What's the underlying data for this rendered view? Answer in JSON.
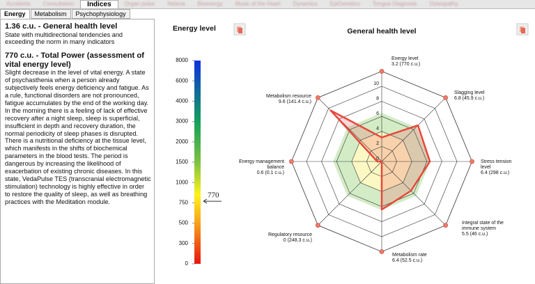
{
  "ui": {
    "tabs": [
      "Accidents",
      "Consultation",
      "Organ pulse",
      "Nidana",
      "Bioenergy",
      "Music of the Heart",
      "Dynamics",
      "EpiGenetics",
      "Tongue Diagnosis",
      "Osteopathy"
    ],
    "active_tab": "Indices",
    "subtabs": [
      "Energy",
      "Metabolism",
      "Psychophysiology"
    ]
  },
  "text": {
    "heading1": "1.36 c.u. - General health level",
    "desc1": "State with multidirectional tendencies and exceeding the norm in many indicators",
    "heading2": "770 c.u. - Total Power (assessment of vital energy level)",
    "desc2": "Slight decrease in the level of vital energy. A state of psychasthenia when a person already subjectively feels energy deficiency and fatigue. As a rule, functional disorders are not pronounced, fatigue accumulates by the end of the working day. In the morning there is a feeling of lack of effective recovery after a night sleep, sleep is superficial, insufficient in depth and recovery duration, the normal periodicity of sleep phases is disrupted. There is a nutritional deficiency at the tissue level, which manifests in the shifts of biochemical parameters in the blood tests. The period is dangerous by increasing the likelihood of exacerbation of existing chronic diseases. In this state, VedaPulse TES (transcranial electromagnetic stimulation) technology is highly effective in order to restore the quality of sleep, as well as breathing practices with the Meditation module."
  },
  "chart_data": [
    {
      "type": "gauge",
      "title": "Energy level",
      "value": 770,
      "value_label": "770",
      "ylim": [
        0,
        8000
      ],
      "yticks": [
        0,
        300,
        500,
        750,
        1000,
        1500,
        2000,
        3000,
        4000,
        6000,
        8000
      ]
    },
    {
      "type": "radar",
      "title": "General health level",
      "categories": [
        "Energy level",
        "Slagging level",
        "Stress tension level",
        "Integral state of the immune system",
        "Metabolism rate",
        "Regulatory resource",
        "Energy management balance",
        "Metabolism resource"
      ],
      "values": [
        3.2,
        6.8,
        6.4,
        5.5,
        6.4,
        0,
        0.6,
        9.6
      ],
      "value_labels": [
        "3.2 (770 c.u.)",
        "6.8 (45.9 c.u.)",
        "6.4 (298 c.u.)",
        "5.5 (46 c.u.)",
        "6.4 (52.5 c.u.)",
        "0 (248.3 c.u.)",
        "0.6 (0.1 c.u.)",
        "9.6 (141.4 c.u.)"
      ],
      "color": "#e8473a",
      "ylim": [
        0,
        12
      ],
      "yticks": [
        0,
        2,
        4,
        6,
        8,
        10
      ]
    }
  ]
}
